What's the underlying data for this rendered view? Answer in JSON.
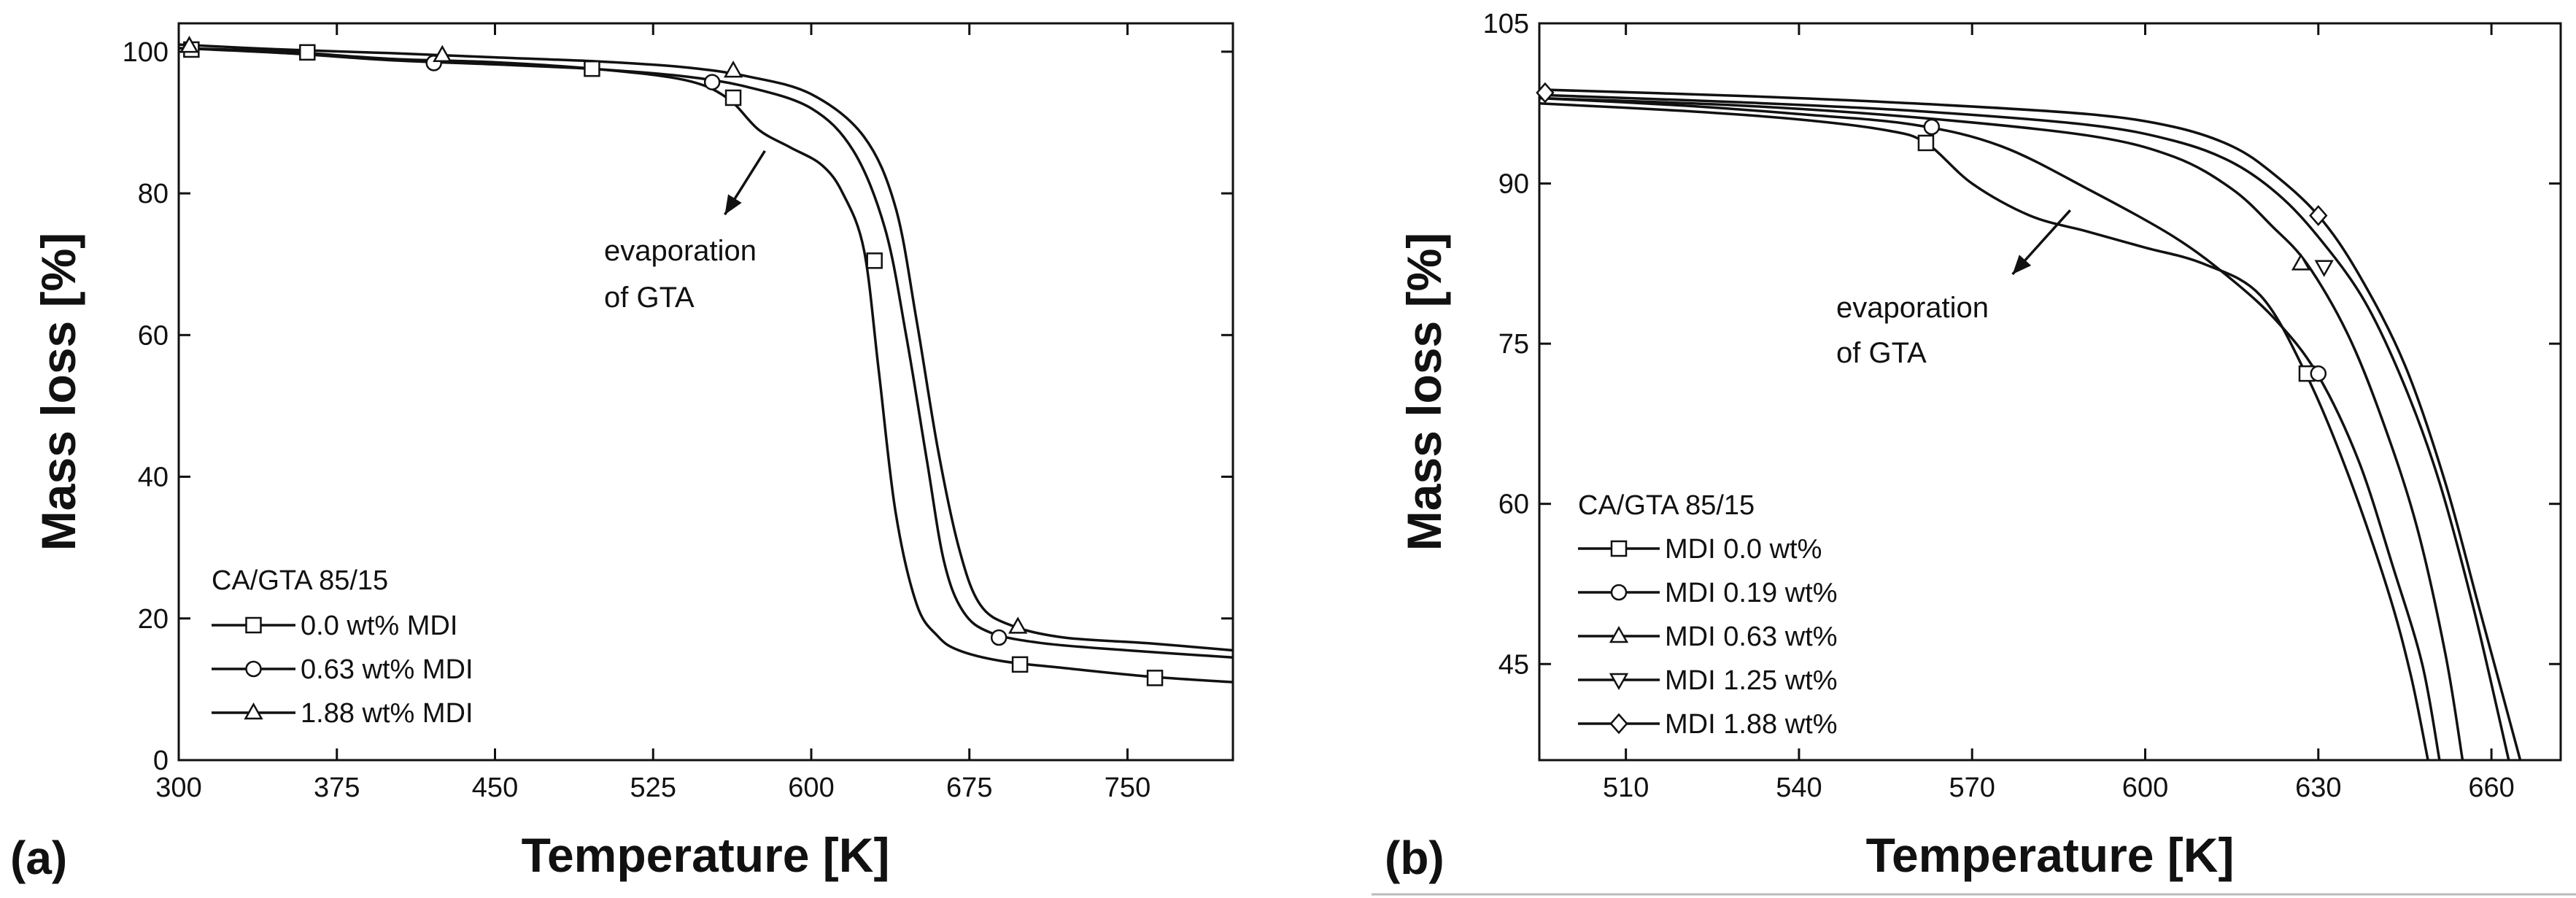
{
  "figure": {
    "panels": [
      "(a)",
      "(b)"
    ]
  },
  "colors": {
    "line": "#111111",
    "marker_fill": "#ffffff",
    "background": "#ffffff"
  },
  "chart_data": [
    {
      "type": "line",
      "panel_label": "(a)",
      "xlabel": "Temperature [K]",
      "ylabel": "Mass loss [%]",
      "xlim": [
        300,
        800
      ],
      "ylim": [
        0,
        104
      ],
      "xticks": [
        300,
        375,
        450,
        525,
        600,
        675,
        750
      ],
      "yticks": [
        0,
        20,
        40,
        60,
        80,
        100
      ],
      "legend_title": "CA/GTA 85/15",
      "legend_position": "bottom-left",
      "annotation": {
        "lines": [
          "evaporation",
          "of GTA"
        ],
        "arrow_from": [
          578,
          86
        ],
        "arrow_to": [
          559,
          77
        ]
      },
      "series": [
        {
          "name": "0.0 wt% MDI",
          "marker": "square",
          "x": [
            300,
            350,
            400,
            450,
            500,
            540,
            560,
            575,
            590,
            605,
            615,
            625,
            632,
            640,
            650,
            660,
            670,
            690,
            720,
            760,
            800
          ],
          "y": [
            100.5,
            100,
            99,
            98.5,
            97.5,
            96,
            93.5,
            89,
            86.5,
            84,
            80,
            72,
            55,
            35,
            22,
            17.5,
            15.5,
            14,
            13,
            11.8,
            11
          ],
          "markers_at": [
            [
              306,
              100.3
            ],
            [
              361,
              99.9
            ],
            [
              496,
              97.6
            ],
            [
              563,
              93.5
            ],
            [
              630,
              70.5
            ],
            [
              699,
              13.5
            ],
            [
              763,
              11.6
            ]
          ]
        },
        {
          "name": "0.63 wt% MDI",
          "marker": "circle",
          "x": [
            300,
            350,
            400,
            450,
            500,
            540,
            570,
            600,
            620,
            635,
            645,
            655,
            663,
            672,
            685,
            710,
            750,
            800
          ],
          "y": [
            100.5,
            99.8,
            98.8,
            98.2,
            97.5,
            96.5,
            95,
            92,
            86,
            75,
            60,
            42,
            28,
            21,
            18,
            16.5,
            15.5,
            14.5
          ],
          "markers_at": [
            [
              421,
              98.4
            ],
            [
              553,
              95.7
            ],
            [
              689,
              17.3
            ]
          ]
        },
        {
          "name": "1.88 wt% MDI",
          "marker": "triangle",
          "x": [
            300,
            350,
            400,
            450,
            500,
            540,
            570,
            600,
            625,
            640,
            650,
            660,
            670,
            680,
            695,
            720,
            760,
            800
          ],
          "y": [
            101,
            100.3,
            99.8,
            99.2,
            98.6,
            97.8,
            96.5,
            94,
            88,
            78,
            62,
            44,
            30,
            22,
            19,
            17.3,
            16.5,
            15.5
          ],
          "markers_at": [
            [
              305,
              100.8
            ],
            [
              425,
              99.5
            ],
            [
              563,
              97.3
            ],
            [
              698,
              18.8
            ]
          ]
        }
      ]
    },
    {
      "type": "line",
      "panel_label": "(b)",
      "xlabel": "Temperature [K]",
      "ylabel": "Mass loss [%]",
      "xlim": [
        495,
        672
      ],
      "ylim": [
        36,
        105
      ],
      "xticks": [
        510,
        540,
        570,
        600,
        630,
        660
      ],
      "yticks": [
        45,
        60,
        75,
        90,
        105
      ],
      "legend_title": "CA/GTA 85/15",
      "legend_position": "bottom-left",
      "annotation": {
        "lines": [
          "evaporation",
          "of GTA"
        ],
        "arrow_from": [
          587,
          87.5
        ],
        "arrow_to": [
          577,
          81.5
        ]
      },
      "series": [
        {
          "name": "MDI 0.0 wt%",
          "marker": "square",
          "x": [
            495,
            520,
            540,
            555,
            562,
            570,
            580,
            590,
            600,
            610,
            620,
            628,
            635,
            642,
            646,
            649
          ],
          "y": [
            97.5,
            96.8,
            96,
            95,
            93.8,
            90,
            87,
            85.5,
            84,
            82.5,
            79.5,
            72,
            63,
            52,
            44,
            36
          ],
          "markers_at": [
            [
              562,
              93.8
            ],
            [
              628,
              72.2
            ]
          ]
        },
        {
          "name": "MDI 0.19 wt%",
          "marker": "circle",
          "x": [
            495,
            520,
            540,
            560,
            575,
            590,
            605,
            615,
            623,
            630,
            637,
            643,
            648,
            651
          ],
          "y": [
            98,
            97.3,
            96.5,
            95.5,
            93.5,
            89.5,
            85,
            81,
            77,
            72,
            64,
            54,
            45,
            36
          ],
          "markers_at": [
            [
              563,
              95.3
            ],
            [
              630,
              72.2
            ]
          ]
        },
        {
          "name": "MDI 0.63 wt%",
          "marker": "triangle",
          "x": [
            495,
            530,
            560,
            590,
            605,
            615,
            622,
            628,
            635,
            641,
            647,
            652,
            655
          ],
          "y": [
            98,
            97.3,
            96.2,
            94.5,
            92.5,
            89.5,
            86,
            82.5,
            76,
            68,
            58,
            46,
            36
          ],
          "markers_at": [
            [
              627,
              82.5
            ]
          ]
        },
        {
          "name": "MDI 1.25 wt%",
          "marker": "triangle-down",
          "x": [
            495,
            530,
            560,
            590,
            605,
            615,
            623,
            630,
            638,
            645,
            651,
            657,
            663
          ],
          "y": [
            98.3,
            97.6,
            96.8,
            95.5,
            94,
            92,
            89,
            85,
            79,
            71,
            62,
            50,
            36
          ],
          "markers_at": [
            [
              631,
              82.2
            ]
          ]
        },
        {
          "name": "MDI 1.88 wt%",
          "marker": "diamond",
          "x": [
            495,
            530,
            560,
            590,
            605,
            615,
            622,
            630,
            637,
            645,
            652,
            658,
            665
          ],
          "y": [
            98.8,
            98.2,
            97.5,
            96.5,
            95.3,
            93.5,
            91,
            87,
            81.5,
            73,
            62,
            50,
            36
          ],
          "markers_at": [
            [
              496,
              98.5
            ],
            [
              630,
              87
            ]
          ]
        }
      ]
    }
  ]
}
